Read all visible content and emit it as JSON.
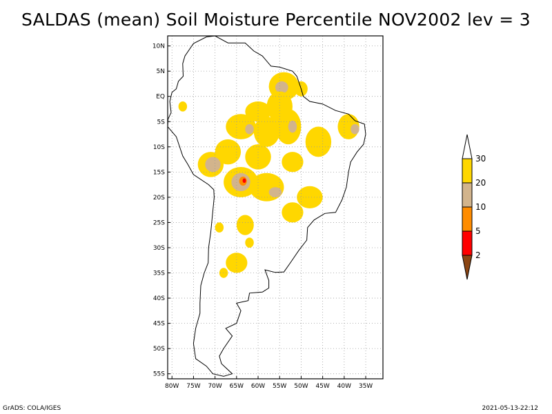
{
  "title": "SALDAS (mean) Soil Moisture Percentile NOV2002 lev = 3",
  "footer": {
    "left": "GrADS: COLA/IGES",
    "right": "2021-05-13-22:12"
  },
  "map": {
    "lon_range": [
      -81,
      -31
    ],
    "lat_range": [
      -56,
      12
    ],
    "lat_ticks": [
      {
        "value": 10,
        "label": "10N"
      },
      {
        "value": 5,
        "label": "5N"
      },
      {
        "value": 0,
        "label": "EQ"
      },
      {
        "value": -5,
        "label": "5S"
      },
      {
        "value": -10,
        "label": "10S"
      },
      {
        "value": -15,
        "label": "15S"
      },
      {
        "value": -20,
        "label": "20S"
      },
      {
        "value": -25,
        "label": "25S"
      },
      {
        "value": -30,
        "label": "30S"
      },
      {
        "value": -35,
        "label": "35S"
      },
      {
        "value": -40,
        "label": "40S"
      },
      {
        "value": -45,
        "label": "45S"
      },
      {
        "value": -50,
        "label": "50S"
      },
      {
        "value": -55,
        "label": "55S"
      }
    ],
    "lon_ticks": [
      {
        "value": -80,
        "label": "80W"
      },
      {
        "value": -75,
        "label": "75W"
      },
      {
        "value": -70,
        "label": "70W"
      },
      {
        "value": -65,
        "label": "65W"
      },
      {
        "value": -60,
        "label": "60W"
      },
      {
        "value": -55,
        "label": "55W"
      },
      {
        "value": -50,
        "label": "50W"
      },
      {
        "value": -45,
        "label": "45W"
      },
      {
        "value": -40,
        "label": "40W"
      },
      {
        "value": -35,
        "label": "35W"
      }
    ],
    "coastline": [
      [
        -77,
        8
      ],
      [
        -75,
        10.5
      ],
      [
        -72,
        11.8
      ],
      [
        -70,
        12
      ],
      [
        -67,
        10.6
      ],
      [
        -63,
        10.6
      ],
      [
        -61,
        9
      ],
      [
        -59,
        8
      ],
      [
        -57,
        6
      ],
      [
        -55,
        5.8
      ],
      [
        -52,
        5
      ],
      [
        -51,
        4
      ],
      [
        -50,
        1.5
      ],
      [
        -49.5,
        0
      ],
      [
        -48,
        -1
      ],
      [
        -45,
        -1.5
      ],
      [
        -42,
        -2.8
      ],
      [
        -39,
        -3.5
      ],
      [
        -37.5,
        -4.8
      ],
      [
        -35.3,
        -5.5
      ],
      [
        -35,
        -7.5
      ],
      [
        -35.5,
        -9.5
      ],
      [
        -37,
        -11
      ],
      [
        -38.5,
        -13
      ],
      [
        -39,
        -15
      ],
      [
        -39.5,
        -18
      ],
      [
        -40.5,
        -20.5
      ],
      [
        -42,
        -23
      ],
      [
        -44.5,
        -23.2
      ],
      [
        -47,
        -24.5
      ],
      [
        -48.5,
        -26
      ],
      [
        -48.7,
        -28.5
      ],
      [
        -50.5,
        -30.5
      ],
      [
        -52.5,
        -33
      ],
      [
        -54,
        -34.8
      ],
      [
        -56,
        -34.9
      ],
      [
        -58.4,
        -34.4
      ],
      [
        -57.5,
        -36.5
      ],
      [
        -57.5,
        -38
      ],
      [
        -59,
        -38.8
      ],
      [
        -62,
        -39
      ],
      [
        -62.3,
        -40.5
      ],
      [
        -65,
        -41
      ],
      [
        -64,
        -42.5
      ],
      [
        -65,
        -45
      ],
      [
        -67.5,
        -46
      ],
      [
        -66,
        -47.5
      ],
      [
        -68,
        -50
      ],
      [
        -69,
        -51.5
      ],
      [
        -68.5,
        -53
      ],
      [
        -66,
        -55
      ],
      [
        -68,
        -55.5
      ],
      [
        -70.5,
        -55
      ],
      [
        -72,
        -53.5
      ],
      [
        -74.5,
        -52
      ],
      [
        -75,
        -49
      ],
      [
        -74.5,
        -46
      ],
      [
        -73.5,
        -43
      ],
      [
        -73.5,
        -41
      ],
      [
        -73.3,
        -37.5
      ],
      [
        -72.5,
        -35
      ],
      [
        -71.6,
        -33
      ],
      [
        -71.5,
        -30
      ],
      [
        -71,
        -27
      ],
      [
        -70.6,
        -23.5
      ],
      [
        -70.2,
        -20
      ],
      [
        -70.3,
        -18.5
      ],
      [
        -71.5,
        -17.5
      ],
      [
        -75,
        -15.5
      ],
      [
        -76.3,
        -13.5
      ],
      [
        -77.5,
        -11.8
      ],
      [
        -79,
        -8
      ],
      [
        -81,
        -6
      ],
      [
        -80.9,
        -4.5
      ],
      [
        -80.2,
        -3.2
      ],
      [
        -80.5,
        -1
      ],
      [
        -80,
        0.8
      ],
      [
        -79,
        1.5
      ],
      [
        -78.5,
        3
      ],
      [
        -77.4,
        4
      ],
      [
        -77.5,
        6.5
      ],
      [
        -77,
        8
      ]
    ],
    "moisture_patches": [
      {
        "lon": -54,
        "lat": 2,
        "rx": 3.5,
        "ry": 2.8,
        "category": "20-30"
      },
      {
        "lon": -54.5,
        "lat": 1.8,
        "rx": 1.5,
        "ry": 1.2,
        "category": "10-20"
      },
      {
        "lon": -50,
        "lat": 1.5,
        "rx": 1.5,
        "ry": 1.5,
        "category": "20-30"
      },
      {
        "lon": -60,
        "lat": -3,
        "rx": 3,
        "ry": 2,
        "category": "20-30"
      },
      {
        "lon": -55,
        "lat": -2,
        "rx": 3,
        "ry": 3,
        "category": "20-30"
      },
      {
        "lon": -64,
        "lat": -6,
        "rx": 3.5,
        "ry": 2.5,
        "category": "20-30"
      },
      {
        "lon": -62,
        "lat": -6.5,
        "rx": 1,
        "ry": 1,
        "category": "10-20"
      },
      {
        "lon": -58,
        "lat": -7,
        "rx": 3,
        "ry": 3,
        "category": "20-30"
      },
      {
        "lon": -53,
        "lat": -6,
        "rx": 3,
        "ry": 3.5,
        "category": "20-30"
      },
      {
        "lon": -52,
        "lat": -6,
        "rx": 1,
        "ry": 1.2,
        "category": "10-20"
      },
      {
        "lon": -39,
        "lat": -6,
        "rx": 2.5,
        "ry": 2.5,
        "category": "20-30"
      },
      {
        "lon": -37.5,
        "lat": -6.5,
        "rx": 1,
        "ry": 1,
        "category": "10-20"
      },
      {
        "lon": -46,
        "lat": -9,
        "rx": 3,
        "ry": 3,
        "category": "20-30"
      },
      {
        "lon": -67,
        "lat": -11,
        "rx": 3,
        "ry": 2.5,
        "category": "20-30"
      },
      {
        "lon": -71,
        "lat": -13.5,
        "rx": 3,
        "ry": 2.5,
        "category": "20-30"
      },
      {
        "lon": -70.5,
        "lat": -13.5,
        "rx": 1.8,
        "ry": 1.5,
        "category": "10-20"
      },
      {
        "lon": -60,
        "lat": -12,
        "rx": 3,
        "ry": 2.5,
        "category": "20-30"
      },
      {
        "lon": -52,
        "lat": -13,
        "rx": 2.5,
        "ry": 2,
        "category": "20-30"
      },
      {
        "lon": -64,
        "lat": -17,
        "rx": 4,
        "ry": 3,
        "category": "20-30"
      },
      {
        "lon": -64,
        "lat": -17,
        "rx": 2.2,
        "ry": 1.8,
        "category": "10-20"
      },
      {
        "lon": -63.5,
        "lat": -16.8,
        "rx": 0.9,
        "ry": 0.9,
        "category": "5-10"
      },
      {
        "lon": -63.2,
        "lat": -16.7,
        "rx": 0.4,
        "ry": 0.45,
        "category": "2-5"
      },
      {
        "lon": -58,
        "lat": -18,
        "rx": 4,
        "ry": 2.8,
        "category": "20-30"
      },
      {
        "lon": -56,
        "lat": -19,
        "rx": 1.5,
        "ry": 1,
        "category": "10-20"
      },
      {
        "lon": -48,
        "lat": -20,
        "rx": 3,
        "ry": 2.2,
        "category": "20-30"
      },
      {
        "lon": -52,
        "lat": -23,
        "rx": 2.5,
        "ry": 2,
        "category": "20-30"
      },
      {
        "lon": -63,
        "lat": -25.5,
        "rx": 2,
        "ry": 2,
        "category": "20-30"
      },
      {
        "lon": -69,
        "lat": -26,
        "rx": 1,
        "ry": 1,
        "category": "20-30"
      },
      {
        "lon": -65,
        "lat": -33,
        "rx": 2.5,
        "ry": 2,
        "category": "20-30"
      },
      {
        "lon": -68,
        "lat": -35,
        "rx": 1,
        "ry": 1,
        "category": "20-30"
      },
      {
        "lon": -62,
        "lat": -29,
        "rx": 1,
        "ry": 1,
        "category": "20-30"
      },
      {
        "lon": -77.5,
        "lat": -2,
        "rx": 1,
        "ry": 1,
        "category": "20-30"
      }
    ]
  },
  "colorbar": {
    "levels": [
      "2",
      "5",
      "10",
      "20",
      "30"
    ],
    "segments": [
      {
        "category": "<2",
        "color": "#8b4513"
      },
      {
        "category": "2-5",
        "color": "#ff0000"
      },
      {
        "category": "5-10",
        "color": "#ff8c00"
      },
      {
        "category": "10-20",
        "color": "#d2b48c"
      },
      {
        "category": "20-30",
        "color": "#ffd700"
      },
      {
        "category": ">30",
        "color": "#ffffff"
      }
    ]
  }
}
